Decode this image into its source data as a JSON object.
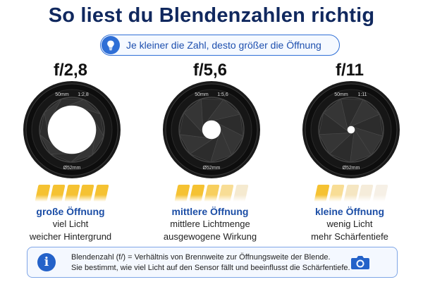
{
  "title": "So liest du Blendenzahlen richtig",
  "tip": {
    "icon": "lightbulb-icon",
    "text": "Je kleiner die Zahl, desto größer die Öffnung"
  },
  "columns": [
    {
      "fstop": "f/2,8",
      "lens_focal": "50mm",
      "lens_aperture": "1:2,8",
      "lens_diameter": "Ø52mm",
      "aperture_opening": 0.78,
      "light_bars": [
        "#f5c232",
        "#f5c232",
        "#f5c232",
        "#f5c232",
        "#f5c232"
      ],
      "label": "große Öffnung",
      "line1": "viel Licht",
      "line2": "weicher Hintergrund"
    },
    {
      "fstop": "f/5,6",
      "lens_focal": "50mm",
      "lens_aperture": "1:5,6",
      "lens_diameter": "Ø52mm",
      "aperture_opening": 0.3,
      "light_bars": [
        "#f5c232",
        "#f5c232",
        "#f7cf5e",
        "#f8dd95",
        "#f5ead0"
      ],
      "label": "mittlere Öffnung",
      "line1": "mittlere Lichtmenge",
      "line2": "ausgewogene Wirkung"
    },
    {
      "fstop": "f/11",
      "lens_focal": "50mm",
      "lens_aperture": "1:11",
      "lens_diameter": "Ø52mm",
      "aperture_opening": 0.12,
      "light_bars": [
        "#f5c232",
        "#f8dd95",
        "#f5e6c2",
        "#f5ecda",
        "#f6f0e6"
      ],
      "label": "kleine Öffnung",
      "line1": "wenig Licht",
      "line2": "mehr Schärfentiefe"
    }
  ],
  "info": {
    "icon": "info-icon",
    "line1": "Blendenzahl (f/) = Verhältnis von Brennweite zur Öffnungsweite der Blende.",
    "line2": "Sie bestimmt, wie viel Licht auf den Sensor fällt und beeinflusst die Schärfentiefe.",
    "camera_icon": "camera-icon"
  },
  "colors": {
    "title": "#10285e",
    "accent": "#2f6fd6",
    "label": "#1c4ea6"
  }
}
